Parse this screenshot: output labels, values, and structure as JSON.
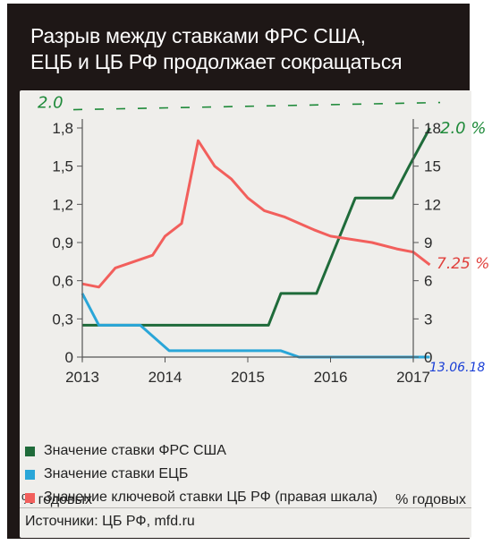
{
  "title_line1": "Разрыв между ставками ФРС США,",
  "title_line2": "ЕЦБ и ЦБ РФ продолжает сокращаться",
  "left_unit": "% годовых",
  "right_unit": "% годовых",
  "legend": [
    {
      "label": "Значение ставки ФРС США",
      "color": "#1f6b3a"
    },
    {
      "label": "Значение ставки ЕЦБ",
      "color": "#2aa6d8"
    },
    {
      "label": "Значение ключевой ставки ЦБ РФ (правая шкала)",
      "color": "#f25f5c"
    }
  ],
  "source": "Источники: ЦБ РФ, mfd.ru",
  "annotations": {
    "left_top": "2.0",
    "right_top": "2.0 %",
    "cbr_end": "7.25 %",
    "ecb_end": "13.06.18"
  },
  "chart_data": {
    "type": "line",
    "xlim": [
      2013,
      2017.2
    ],
    "x_ticks": [
      "2013",
      "2014",
      "2015",
      "2016",
      "2017"
    ],
    "left_axis": {
      "ticks": [
        "0",
        "0,3",
        "0,6",
        "0,9",
        "1,2",
        "1,5",
        "1,8"
      ],
      "ylim": [
        0,
        1.8
      ]
    },
    "right_axis": {
      "ticks": [
        "0",
        "3",
        "6",
        "9",
        "12",
        "15",
        "18"
      ],
      "ylim": [
        0,
        18
      ]
    },
    "series": [
      {
        "name": "Значение ставки ФРС США",
        "axis": "left",
        "color": "#1f6b3a",
        "x": [
          2013.0,
          2015.25,
          2015.4,
          2015.83,
          2016.3,
          2016.75,
          2016.95,
          2017.2
        ],
        "y": [
          0.25,
          0.25,
          0.5,
          0.5,
          1.25,
          1.25,
          1.5,
          1.8
        ]
      },
      {
        "name": "Значение ставки ЕЦБ",
        "axis": "left",
        "color": "#2aa6d8",
        "x": [
          2013.0,
          2013.2,
          2013.7,
          2014.05,
          2015.4,
          2015.62,
          2017.2
        ],
        "y": [
          0.5,
          0.25,
          0.25,
          0.05,
          0.05,
          0.0,
          0.0
        ]
      },
      {
        "name": "Значение ключевой ставки ЦБ РФ (правая шкала)",
        "axis": "right",
        "color": "#f25f5c",
        "x": [
          2013.0,
          2013.2,
          2013.4,
          2013.85,
          2014.0,
          2014.2,
          2014.4,
          2014.6,
          2014.8,
          2015.0,
          2015.2,
          2015.45,
          2015.8,
          2016.0,
          2016.5,
          2016.8,
          2017.0,
          2017.2
        ],
        "y": [
          5.75,
          5.5,
          7.0,
          8.0,
          9.5,
          10.5,
          17.0,
          15.0,
          14.0,
          12.5,
          11.5,
          11.0,
          10.0,
          9.5,
          9.0,
          8.5,
          8.25,
          7.25
        ]
      }
    ]
  }
}
